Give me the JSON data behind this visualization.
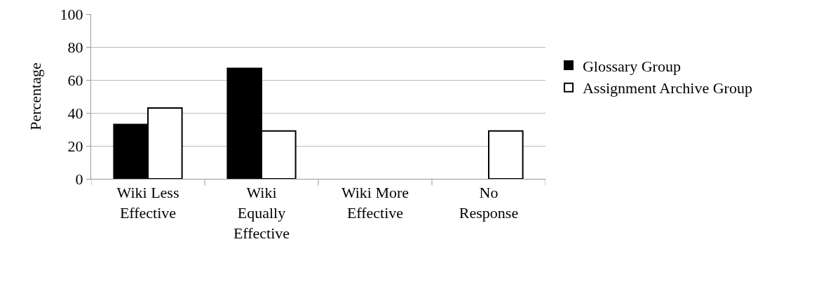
{
  "chart_data": {
    "type": "bar",
    "ylabel": "Percentage",
    "categories": [
      "Wiki Less Effective",
      "Wiki Equally Effective",
      "Wiki More Effective",
      "No Response"
    ],
    "series": [
      {
        "name": "Glossary Group",
        "color": "#000000",
        "values": [
          33,
          67,
          0,
          0
        ]
      },
      {
        "name": "Assignment Archive Group",
        "color": "#ffffff",
        "values": [
          43,
          29,
          0,
          29
        ]
      }
    ],
    "ylim": [
      0,
      100
    ],
    "yticks": [
      0,
      20,
      40,
      60,
      80,
      100
    ],
    "grid": "y",
    "legend": "right"
  }
}
